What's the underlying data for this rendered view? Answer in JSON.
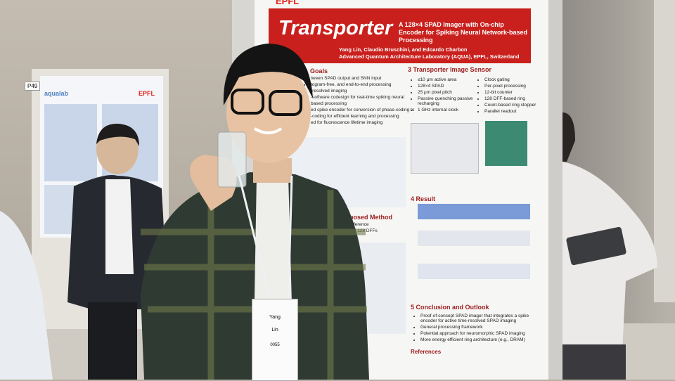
{
  "poster": {
    "logo": "EPFL",
    "title": "Transporter",
    "subtitle": "A 128×4 SPAD Imager with On-chip Encoder for Spiking Neural Network-based Processing",
    "authors": "Yang Lin, Claudio Bruschini, and Edoardo Charbon",
    "affiliation": "Advanced Quantum Architecture Laboratory (AQUA), EPFL, Switzerland",
    "goals": {
      "heading": "& Goals",
      "items": [
        "tween SPAD output and SNN input",
        "togram-free, and end-to-end processing",
        "-resolved imaging",
        "-software codesign for real-time spiking neural",
        "based processing",
        "ed spike encoder for conversion of phase-coding to",
        "-coding for efficient learning and processing",
        "ed for fluorescence lifetime imaging"
      ]
    },
    "sensor": {
      "heading": "3 Transporter Image Sensor",
      "left": [
        "≤10 μm active area",
        "128×4 SPAD",
        "25 μm pixel pitch",
        "Passive quenching passive recharging",
        "1 GHz internal clock"
      ],
      "right": [
        "Clock gating",
        "Per-pixel processing",
        "12-bit counter",
        "128 DFF-based ring",
        "Count-based ring stopper",
        "Parallel readout"
      ]
    },
    "method": {
      "heading": "Proposed Method",
      "items": [
        "y reference",
        "ed of 128 DFFs"
      ]
    },
    "result": {
      "heading": "4 Result"
    },
    "conclusion": {
      "heading": "5 Conclusion and Outlook",
      "items": [
        "Proof-of-concept SPAD imager that integrates a spike encoder for active time-resolved SPAD imaging",
        "General processing framework",
        "Potential approach for neuromorphic SPAD imaging",
        "More energy efficient ring architecture (e.g., DRAM)"
      ]
    },
    "references": "References"
  },
  "badge": {
    "first": "Yang",
    "last": "Lin",
    "number": "0055"
  },
  "background_poster": {
    "board": "P49",
    "logo": "EPFL",
    "lab": "aqualab"
  }
}
